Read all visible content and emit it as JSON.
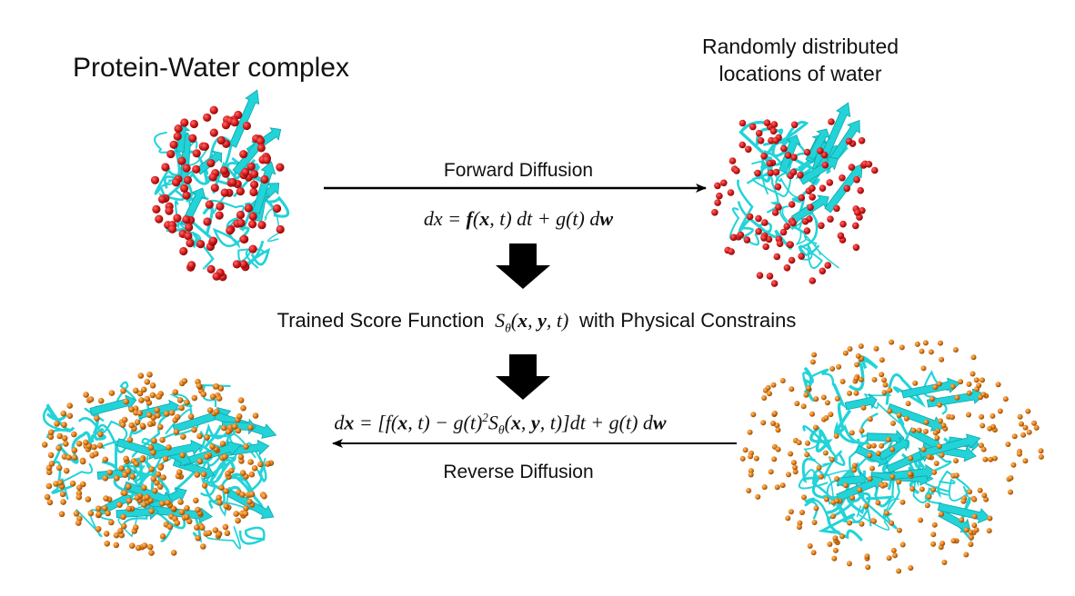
{
  "title": "Protein-Water complex",
  "random_label_line1": "Randomly distributed",
  "random_label_line2": "locations of water",
  "forward_label": "Forward Diffusion",
  "reverse_label": "Reverse Diffusion",
  "score_text_before": "Trained Score Function",
  "score_text_after": "with Physical Constrains",
  "colors": {
    "protein": "#22d3d8",
    "water_red": "#d41a1a",
    "water_orange": "#e07a12",
    "arrow": "#000000"
  },
  "icons": [
    "protein-water-complex-red",
    "protein-random-water-red",
    "protein-water-complex-orange",
    "protein-random-water-orange",
    "down-arrow-icon"
  ]
}
